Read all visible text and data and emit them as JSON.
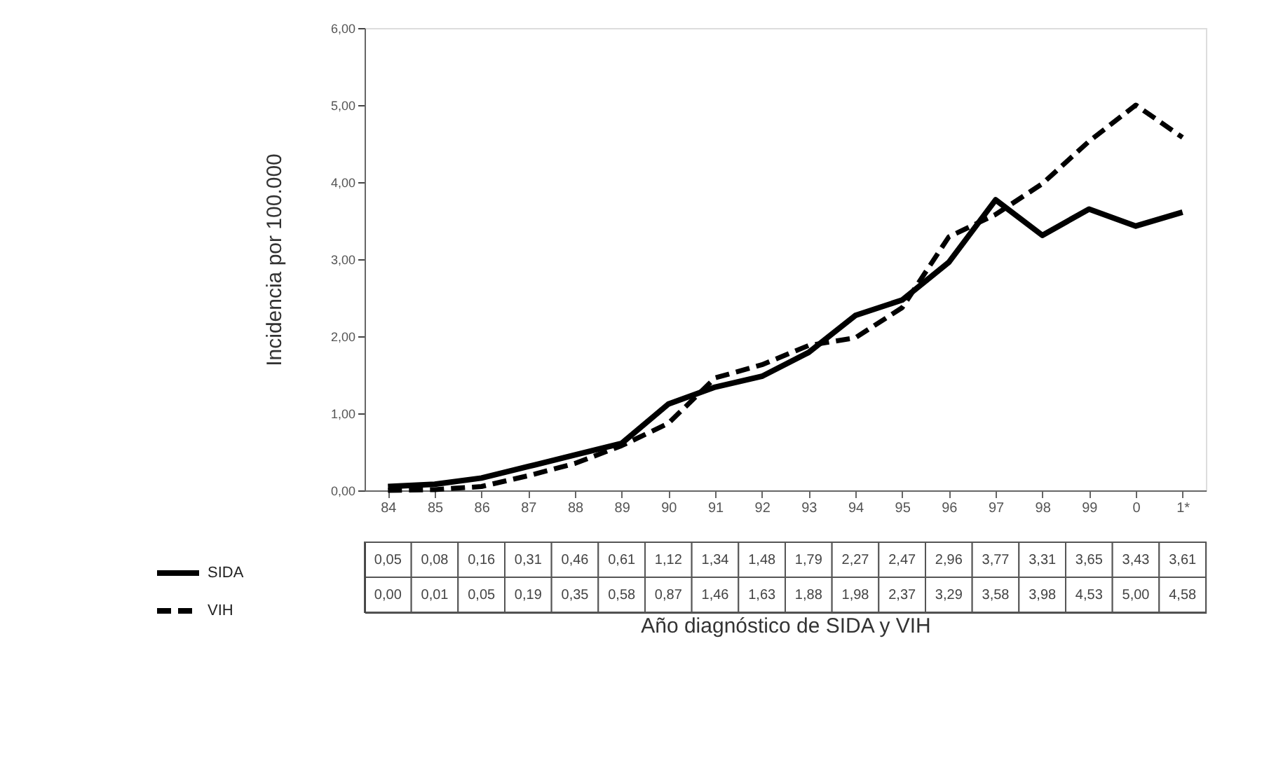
{
  "chart_data": {
    "type": "line",
    "xlabel": "Año diagnóstico de SIDA y VIH",
    "ylabel": "Incidencia por 100.000",
    "categories": [
      "84",
      "85",
      "86",
      "87",
      "88",
      "89",
      "90",
      "91",
      "92",
      "93",
      "94",
      "95",
      "96",
      "97",
      "98",
      "99",
      "0",
      "1*"
    ],
    "series": [
      {
        "name": "SIDA",
        "color": "#000000",
        "line_style": "solid",
        "values": [
          0.05,
          0.08,
          0.16,
          0.31,
          0.46,
          0.61,
          1.12,
          1.34,
          1.48,
          1.79,
          2.27,
          2.47,
          2.96,
          3.77,
          3.31,
          3.65,
          3.43,
          3.61
        ],
        "value_labels": [
          "0,05",
          "0,08",
          "0,16",
          "0,31",
          "0,46",
          "0,61",
          "1,12",
          "1,34",
          "1,48",
          "1,79",
          "2,27",
          "2,47",
          "2,96",
          "3,77",
          "3,31",
          "3,65",
          "3,43",
          "3,61"
        ]
      },
      {
        "name": "VIH",
        "color": "#000000",
        "line_style": "dashed",
        "values": [
          0.0,
          0.01,
          0.05,
          0.19,
          0.35,
          0.58,
          0.87,
          1.46,
          1.63,
          1.88,
          1.98,
          2.37,
          3.29,
          3.58,
          3.98,
          4.53,
          5.0,
          4.58
        ],
        "value_labels": [
          "0,00",
          "0,01",
          "0,05",
          "0,19",
          "0,35",
          "0,58",
          "0,87",
          "1,46",
          "1,63",
          "1,88",
          "1,98",
          "2,37",
          "3,29",
          "3,58",
          "3,98",
          "4,53",
          "5,00",
          "4,58"
        ]
      }
    ],
    "ylim": [
      0,
      6
    ],
    "yticks": [
      {
        "value": 0,
        "label": "0,00"
      },
      {
        "value": 1,
        "label": "1,00"
      },
      {
        "value": 2,
        "label": "2,00"
      },
      {
        "value": 3,
        "label": "3,00"
      },
      {
        "value": 4,
        "label": "4,00"
      },
      {
        "value": 5,
        "label": "5,00"
      },
      {
        "value": 6,
        "label": "6,00"
      }
    ],
    "grid": false,
    "legend": "bottom left",
    "data_labels": true
  }
}
